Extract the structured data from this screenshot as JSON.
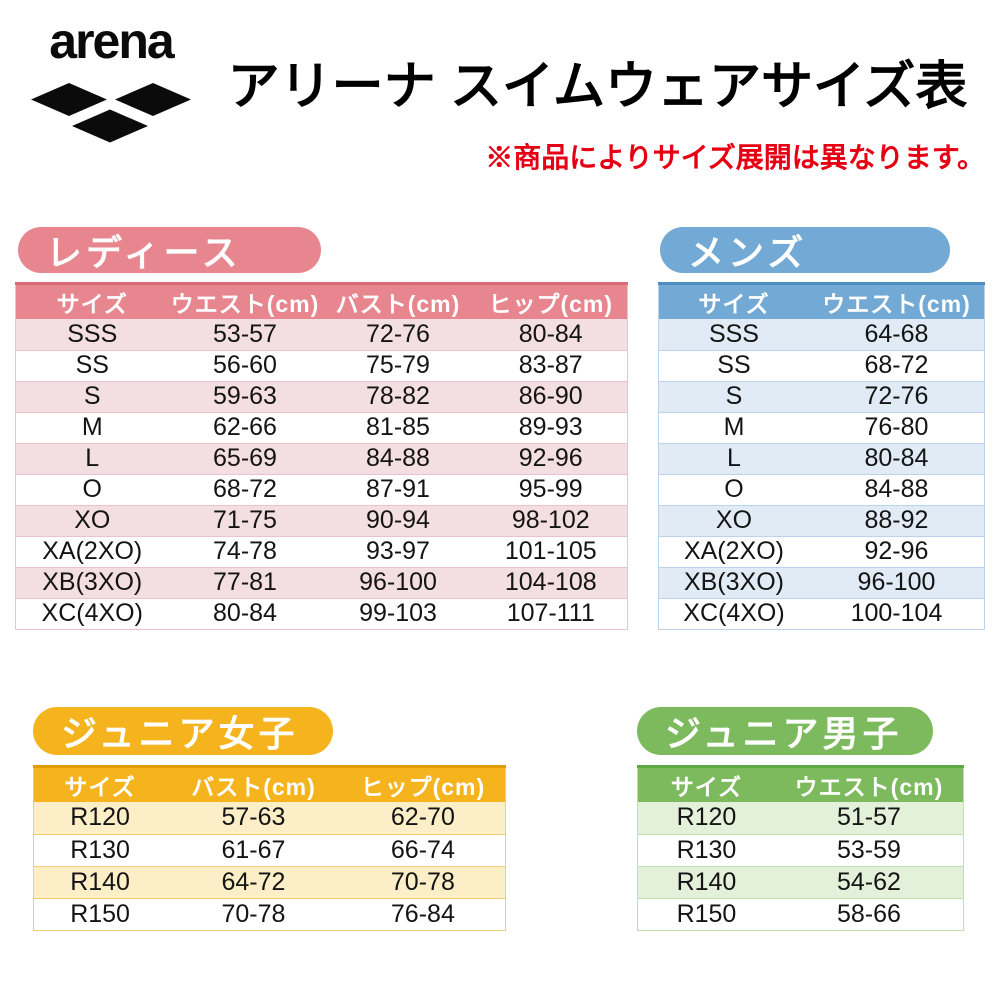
{
  "header": {
    "logo_text": "arena",
    "title": "アリーナ スイムウェアサイズ表",
    "note": "※商品によりサイズ展開は異なります。",
    "note_color": "#e60013",
    "title_color": "#000000"
  },
  "tables": {
    "ladies": {
      "tab": "レディース",
      "columns": [
        "サイズ",
        "ウエスト(cm)",
        "バスト(cm)",
        "ヒップ(cm)"
      ],
      "rows": [
        [
          "SSS",
          "53-57",
          "72-76",
          "80-84"
        ],
        [
          "SS",
          "56-60",
          "75-79",
          "83-87"
        ],
        [
          "S",
          "59-63",
          "78-82",
          "86-90"
        ],
        [
          "M",
          "62-66",
          "81-85",
          "89-93"
        ],
        [
          "L",
          "65-69",
          "84-88",
          "92-96"
        ],
        [
          "O",
          "68-72",
          "87-91",
          "95-99"
        ],
        [
          "XO",
          "71-75",
          "90-94",
          "98-102"
        ],
        [
          "XA(2XO)",
          "74-78",
          "93-97",
          "101-105"
        ],
        [
          "XB(3XO)",
          "77-81",
          "96-100",
          "104-108"
        ],
        [
          "XC(4XO)",
          "80-84",
          "99-103",
          "107-111"
        ]
      ],
      "colors": {
        "accent": "#e8868f",
        "pale": "#f3dee3",
        "line": "#edc3ca",
        "dark": "#db6a76"
      }
    },
    "mens": {
      "tab": "メンズ",
      "columns": [
        "サイズ",
        "ウエスト(cm)"
      ],
      "rows": [
        [
          "SSS",
          "64-68"
        ],
        [
          "SS",
          "68-72"
        ],
        [
          "S",
          "72-76"
        ],
        [
          "M",
          "76-80"
        ],
        [
          "L",
          "80-84"
        ],
        [
          "O",
          "84-88"
        ],
        [
          "XO",
          "88-92"
        ],
        [
          "XA(2XO)",
          "92-96"
        ],
        [
          "XB(3XO)",
          "96-100"
        ],
        [
          "XC(4XO)",
          "100-104"
        ]
      ],
      "colors": {
        "accent": "#72a9d5",
        "pale": "#e0ebf5",
        "line": "#bad4eb",
        "dark": "#4f8cc0"
      }
    },
    "junior_girls": {
      "tab": "ジュニア女子",
      "columns": [
        "サイズ",
        "バスト(cm)",
        "ヒップ(cm)"
      ],
      "rows": [
        [
          "R120",
          "57-63",
          "62-70"
        ],
        [
          "R130",
          "61-67",
          "66-74"
        ],
        [
          "R140",
          "64-72",
          "70-78"
        ],
        [
          "R150",
          "70-78",
          "76-84"
        ]
      ],
      "colors": {
        "accent": "#f5b41e",
        "pale": "#fceec6",
        "line": "#f3ce74",
        "dark": "#e19c00"
      }
    },
    "junior_boys": {
      "tab": "ジュニア男子",
      "columns": [
        "サイズ",
        "ウエスト(cm)"
      ],
      "rows": [
        [
          "R120",
          "51-57"
        ],
        [
          "R130",
          "53-59"
        ],
        [
          "R140",
          "54-62"
        ],
        [
          "R150",
          "58-66"
        ]
      ],
      "colors": {
        "accent": "#7cba5d",
        "pale": "#e3f0da",
        "line": "#c4e0b2",
        "dark": "#5fa844"
      }
    }
  }
}
